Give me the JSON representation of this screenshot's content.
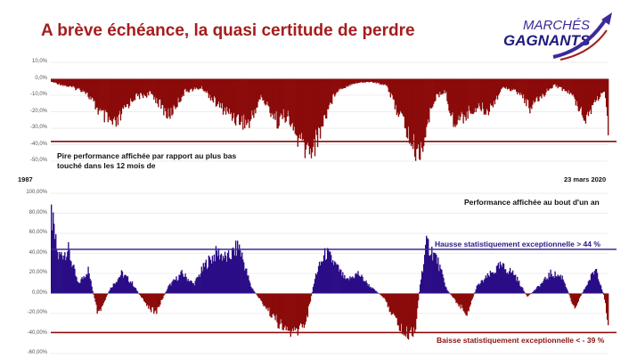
{
  "title": "A brève échéance, la quasi certitude de perdre",
  "logo": {
    "line1": "MARCHÉS",
    "line2": "GAGNANTS"
  },
  "colors": {
    "title": "#a61d1d",
    "drawdown": "#8b0a0a",
    "positive": "#2a0c86",
    "negative": "#8b0a0a",
    "hline_blue": "#3b2a9a",
    "hline_red": "#8b0a0a"
  },
  "chart_data": [
    {
      "type": "area",
      "description_label": "Pire performance affichée par rapport au plus bas touché dans les 12 mois de",
      "x_start_label": "1987",
      "x_end_label": "23 mars 2020",
      "yticks": [
        "10,0%",
        "0,0%",
        "-10,0%",
        "-20,0%",
        "-30,0%",
        "-40,0%",
        "-50,0%"
      ],
      "ylim": [
        -50,
        10
      ],
      "reference_line": -38,
      "x": [
        1987,
        1988,
        1989,
        1990,
        1990.8,
        1991.5,
        1992,
        1993,
        1994,
        1995,
        1996,
        1997,
        1998,
        1998.8,
        1999.5,
        2000,
        2000.5,
        2001,
        2001.7,
        2002.3,
        2002.8,
        2003.5,
        2004,
        2005,
        2006,
        2007,
        2007.5,
        2008,
        2008.5,
        2008.9,
        2009.3,
        2009.8,
        2010.5,
        2011,
        2011.7,
        2012.5,
        2013,
        2014,
        2015,
        2015.6,
        2016.2,
        2017,
        2018,
        2018.9,
        2019.5,
        2020.0,
        2020.22
      ],
      "values": [
        -2,
        -5,
        -8,
        -24,
        -32,
        -18,
        -12,
        -10,
        -25,
        -8,
        -6,
        -18,
        -26,
        -30,
        -12,
        -20,
        -28,
        -24,
        -40,
        -48,
        -42,
        -20,
        -8,
        -3,
        -2,
        -4,
        -18,
        -28,
        -44,
        -50,
        -38,
        -14,
        -8,
        -30,
        -24,
        -18,
        -22,
        -5,
        -10,
        -20,
        -12,
        -4,
        -10,
        -26,
        -14,
        -8,
        -38
      ]
    },
    {
      "type": "area",
      "description_label": "Performance affichée au bout d'un an",
      "yticks": [
        "100,00%",
        "80,00%",
        "60,00%",
        "40,00%",
        "20,00%",
        "0,00%",
        "-20,00%",
        "-40,00%",
        "-60,00%"
      ],
      "ylim": [
        -60,
        100
      ],
      "reference_lines": [
        {
          "value": 44,
          "label": "Hausse statistiquement exceptionnelle > 44 %"
        },
        {
          "value": -39,
          "label": "Baisse statistiquement exceptionnelle < - 39 %"
        }
      ],
      "x": [
        1987,
        1987.4,
        1988,
        1988.6,
        1989.2,
        1989.8,
        1990.5,
        1991.2,
        1991.8,
        1992.5,
        1993.2,
        1994,
        1994.8,
        1995.5,
        1996.2,
        1996.9,
        1997.5,
        1998.2,
        1998.9,
        1999.5,
        2000.1,
        2000.8,
        2001.5,
        2002.2,
        2002.8,
        2003.4,
        2004,
        2004.6,
        2005.3,
        2006,
        2006.8,
        2007.5,
        2008.1,
        2008.7,
        2009.0,
        2009.4,
        2010,
        2010.6,
        2011.2,
        2011.8,
        2012.4,
        2013,
        2013.8,
        2014.6,
        2015.4,
        2016.2,
        2016.8,
        2017.5,
        2018.2,
        2018.9,
        2019.5,
        2020.0,
        2020.22
      ],
      "values": [
        86,
        40,
        48,
        10,
        26,
        -25,
        5,
        22,
        12,
        -8,
        -22,
        8,
        22,
        10,
        32,
        45,
        38,
        52,
        8,
        -8,
        -22,
        -38,
        -44,
        -30,
        22,
        45,
        30,
        14,
        22,
        8,
        -4,
        -28,
        -46,
        -40,
        10,
        55,
        38,
        4,
        -10,
        -22,
        8,
        18,
        30,
        22,
        -4,
        10,
        22,
        18,
        -16,
        8,
        28,
        -5,
        -32
      ]
    }
  ]
}
